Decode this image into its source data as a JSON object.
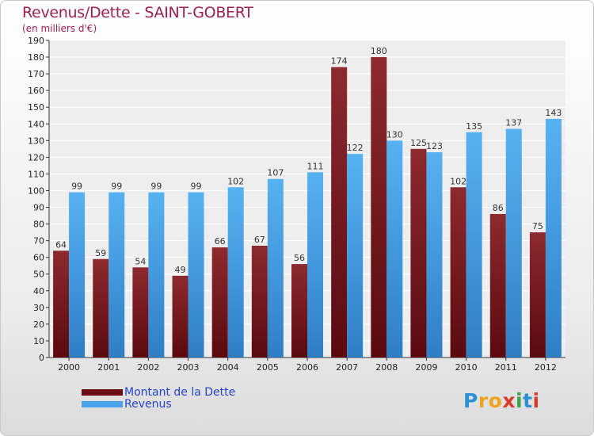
{
  "title": "Revenus/Dette - SAINT-GOBERT",
  "subtitle": "(en milliers d'€)",
  "chart_data": {
    "type": "bar",
    "categories": [
      "2000",
      "2001",
      "2002",
      "2003",
      "2004",
      "2005",
      "2006",
      "2007",
      "2008",
      "2009",
      "2010",
      "2011",
      "2012"
    ],
    "series": [
      {
        "name": "Montant de la Dette",
        "color": "#7a1a1e",
        "values": [
          64,
          59,
          54,
          49,
          66,
          67,
          56,
          174,
          180,
          125,
          102,
          86,
          75
        ]
      },
      {
        "name": "Revenus",
        "color": "#4aa3e8",
        "values": [
          99,
          99,
          99,
          99,
          102,
          107,
          111,
          122,
          130,
          123,
          135,
          137,
          143
        ]
      }
    ],
    "ylim": [
      0,
      190
    ],
    "ytick_step": 10,
    "grid": true,
    "legend_position": "bottom-left"
  },
  "legend": {
    "items": [
      {
        "label": "Montant de la Dette",
        "color": "#6b0d12"
      },
      {
        "label": "Revenus",
        "color": "#4aa3e8"
      }
    ]
  },
  "logo": {
    "letters": [
      "P",
      "r",
      "o",
      "x",
      "i",
      "t",
      "i"
    ],
    "colors": [
      "#2d8fd6",
      "#f0a21c",
      "#f0a21c",
      "#d93a2a",
      "#3ca34a",
      "#2d8fd6",
      "#d93a2a"
    ]
  }
}
